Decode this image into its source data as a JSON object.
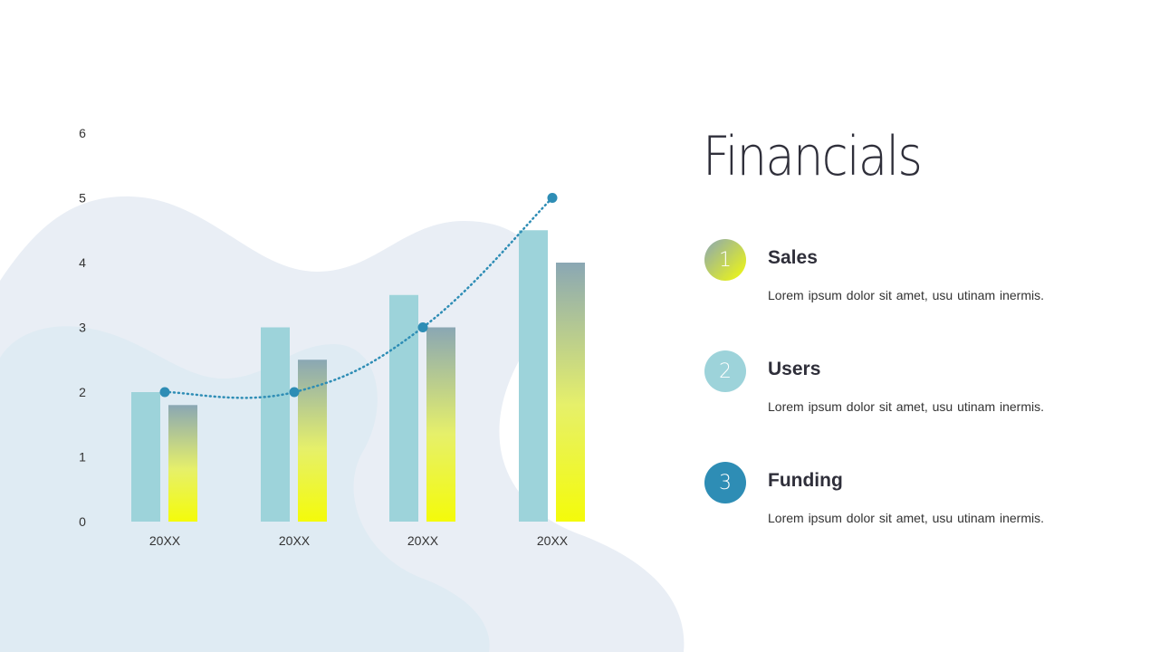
{
  "slide": {
    "title": "Financials",
    "items": [
      {
        "number": "1",
        "heading": "Sales",
        "description": "Lorem ipsum dolor sit amet, usu utinam inermis.",
        "color": "gradient-gray-yellow"
      },
      {
        "number": "2",
        "heading": "Users",
        "description": "Lorem ipsum dolor sit amet, usu utinam inermis.",
        "color": "#9dd3da"
      },
      {
        "number": "3",
        "heading": "Funding",
        "description": "Lorem ipsum dolor sit amet, usu utinam inermis.",
        "color": "#2e8db5"
      }
    ]
  },
  "chart_data": {
    "type": "bar",
    "categories": [
      "20XX",
      "20XX",
      "20XX",
      "20XX"
    ],
    "series": [
      {
        "type": "bar",
        "values": [
          2,
          3,
          3.5,
          4.5
        ],
        "color": "#9dd3da"
      },
      {
        "type": "bar",
        "values": [
          1.8,
          2.5,
          3,
          4
        ],
        "color": "gradient #8aa7b4 to #f4fb0a"
      },
      {
        "type": "line",
        "values": [
          2,
          2,
          3,
          5
        ],
        "color": "#2e8db5",
        "style": "dotted",
        "markers": true
      }
    ],
    "yticks": [
      0,
      1,
      2,
      3,
      4,
      5,
      6
    ],
    "ylim": [
      0,
      6
    ],
    "grid": false,
    "legend": "none",
    "title": "",
    "xlabel": "",
    "ylabel": ""
  }
}
